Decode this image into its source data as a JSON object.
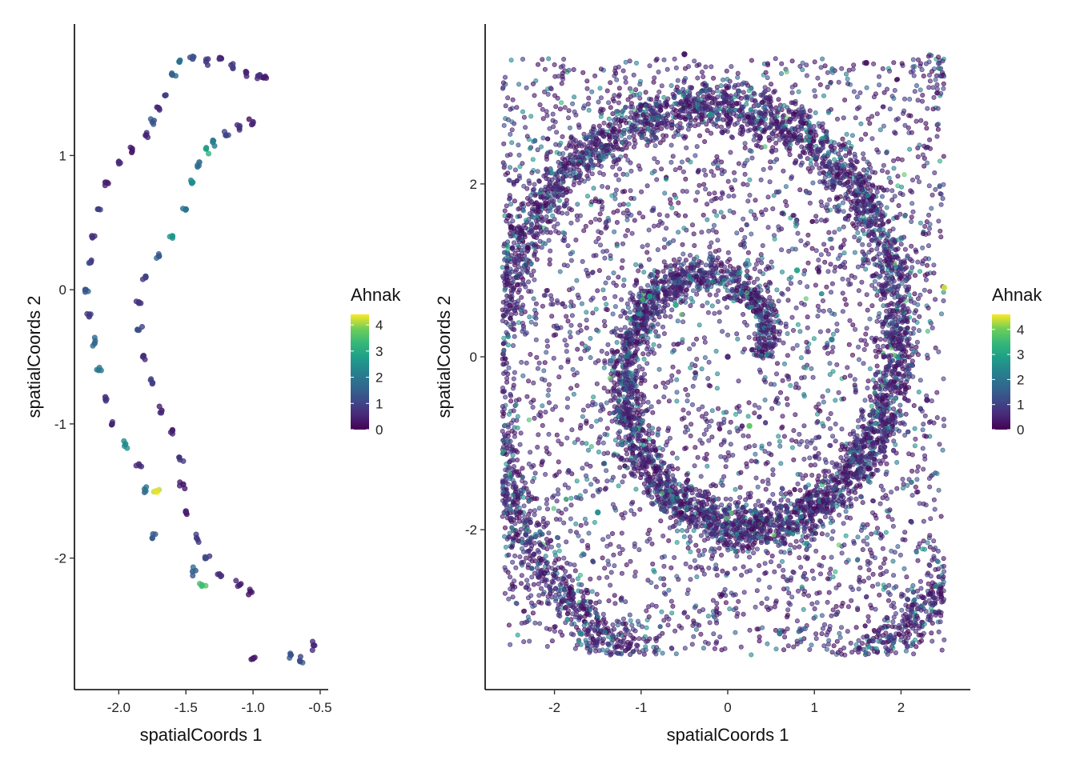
{
  "chart_data": [
    {
      "type": "scatter",
      "id": "left",
      "xlabel": "spatialCoords 1",
      "ylabel": "spatialCoords 2",
      "xlim": [
        -2.33,
        -0.44
      ],
      "ylim": [
        -2.98,
        1.98
      ],
      "xticks": [
        -2.0,
        -1.5,
        -1.0,
        -0.5
      ],
      "xtick_labels": [
        "-2.0",
        "-1.5",
        "-1.0",
        "-0.5"
      ],
      "yticks": [
        -2,
        -1,
        0,
        1
      ],
      "ytick_labels": [
        "-2",
        "-1",
        "0",
        "1"
      ],
      "color_variable": "Ahnak",
      "color_range": [
        0,
        4.4
      ],
      "colorbar_ticks": [
        0,
        1,
        2,
        3,
        4
      ],
      "colorbar_labels": [
        "0",
        "1",
        "2",
        "3",
        "4"
      ],
      "colormap": "viridis",
      "grid": false,
      "legend_position": "right",
      "shape_description": "two curved bands of cells: an outer arc from (-1.3,1.65) down through (-2.2,0) to (-1.75,-1.6), and an inner arc from (-1.0,1.25) down through (-1.85,-0.5) to (-1.0,-2.25); few isolated cells near (-0.6,-2.7)",
      "points": [
        {
          "x": -1.55,
          "y": 1.7,
          "v": 1.8
        },
        {
          "x": -1.45,
          "y": 1.72,
          "v": 1.2
        },
        {
          "x": -1.35,
          "y": 1.7,
          "v": 0.8
        },
        {
          "x": -1.25,
          "y": 1.72,
          "v": 0.6
        },
        {
          "x": -1.15,
          "y": 1.65,
          "v": 0.9
        },
        {
          "x": -1.05,
          "y": 1.62,
          "v": 0.5
        },
        {
          "x": -0.95,
          "y": 1.6,
          "v": 0.7
        },
        {
          "x": -0.92,
          "y": 1.58,
          "v": 0.4
        },
        {
          "x": -1.6,
          "y": 1.6,
          "v": 1.5
        },
        {
          "x": -1.65,
          "y": 1.45,
          "v": 1.0
        },
        {
          "x": -1.7,
          "y": 1.35,
          "v": 0.6
        },
        {
          "x": -1.75,
          "y": 1.25,
          "v": 1.3
        },
        {
          "x": -1.8,
          "y": 1.15,
          "v": 0.5
        },
        {
          "x": -1.9,
          "y": 1.05,
          "v": 0.3
        },
        {
          "x": -2.0,
          "y": 0.95,
          "v": 0.6
        },
        {
          "x": -2.1,
          "y": 0.8,
          "v": 0.4
        },
        {
          "x": -2.15,
          "y": 0.6,
          "v": 0.9
        },
        {
          "x": -2.2,
          "y": 0.4,
          "v": 0.7
        },
        {
          "x": -2.22,
          "y": 0.2,
          "v": 1.1
        },
        {
          "x": -2.25,
          "y": 0.0,
          "v": 1.3
        },
        {
          "x": -2.22,
          "y": -0.2,
          "v": 0.8
        },
        {
          "x": -2.18,
          "y": -0.4,
          "v": 1.6
        },
        {
          "x": -2.15,
          "y": -0.6,
          "v": 2.0
        },
        {
          "x": -2.1,
          "y": -0.8,
          "v": 0.7
        },
        {
          "x": -2.05,
          "y": -1.0,
          "v": 0.5
        },
        {
          "x": -1.95,
          "y": -1.15,
          "v": 2.3
        },
        {
          "x": -1.85,
          "y": -1.3,
          "v": 0.6
        },
        {
          "x": -1.8,
          "y": -1.5,
          "v": 1.9
        },
        {
          "x": -1.72,
          "y": -1.5,
          "v": 4.3
        },
        {
          "x": -1.75,
          "y": -1.85,
          "v": 1.4
        },
        {
          "x": -1.0,
          "y": 1.25,
          "v": 0.5
        },
        {
          "x": -1.1,
          "y": 1.22,
          "v": 0.7
        },
        {
          "x": -1.2,
          "y": 1.15,
          "v": 1.0
        },
        {
          "x": -1.3,
          "y": 1.1,
          "v": 2.1
        },
        {
          "x": -1.35,
          "y": 1.05,
          "v": 2.8
        },
        {
          "x": -1.4,
          "y": 0.95,
          "v": 1.7
        },
        {
          "x": -1.45,
          "y": 0.8,
          "v": 2.4
        },
        {
          "x": -1.5,
          "y": 0.6,
          "v": 1.9
        },
        {
          "x": -1.6,
          "y": 0.4,
          "v": 2.6
        },
        {
          "x": -1.7,
          "y": 0.25,
          "v": 1.4
        },
        {
          "x": -1.8,
          "y": 0.1,
          "v": 1.0
        },
        {
          "x": -1.85,
          "y": -0.1,
          "v": 0.8
        },
        {
          "x": -1.85,
          "y": -0.3,
          "v": 1.2
        },
        {
          "x": -1.82,
          "y": -0.5,
          "v": 0.6
        },
        {
          "x": -1.75,
          "y": -0.7,
          "v": 0.9
        },
        {
          "x": -1.68,
          "y": -0.9,
          "v": 0.5
        },
        {
          "x": -1.6,
          "y": -1.05,
          "v": 0.4
        },
        {
          "x": -1.55,
          "y": -1.25,
          "v": 0.7
        },
        {
          "x": -1.52,
          "y": -1.45,
          "v": 0.3
        },
        {
          "x": -1.5,
          "y": -1.65,
          "v": 0.5
        },
        {
          "x": -1.42,
          "y": -1.85,
          "v": 0.8
        },
        {
          "x": -1.35,
          "y": -2.0,
          "v": 1.1
        },
        {
          "x": -1.25,
          "y": -2.12,
          "v": 0.6
        },
        {
          "x": -1.1,
          "y": -2.2,
          "v": 0.4
        },
        {
          "x": -1.02,
          "y": -2.25,
          "v": 0.3
        },
        {
          "x": -1.38,
          "y": -2.2,
          "v": 3.4
        },
        {
          "x": -1.45,
          "y": -2.1,
          "v": 1.6
        },
        {
          "x": -1.0,
          "y": -2.75,
          "v": 0.4
        },
        {
          "x": -0.72,
          "y": -2.72,
          "v": 1.3
        },
        {
          "x": -0.65,
          "y": -2.77,
          "v": 1.1
        },
        {
          "x": -0.55,
          "y": -2.65,
          "v": 0.5
        }
      ]
    },
    {
      "type": "scatter",
      "id": "right",
      "xlabel": "spatialCoords 1",
      "ylabel": "spatialCoords 2",
      "xlim": [
        -2.8,
        2.8
      ],
      "ylim": [
        -3.85,
        3.85
      ],
      "xticks": [
        -2,
        -1,
        0,
        1,
        2
      ],
      "xtick_labels": [
        "-2",
        "-1",
        "0",
        "1",
        "2"
      ],
      "yticks": [
        -2,
        0,
        2
      ],
      "ytick_labels": [
        "-2",
        "0",
        "2"
      ],
      "color_variable": "Ahnak",
      "color_range": [
        0,
        4.6
      ],
      "colorbar_ticks": [
        0,
        1,
        2,
        3,
        4
      ],
      "colorbar_labels": [
        "0",
        "1",
        "2",
        "3",
        "4"
      ],
      "colormap": "viridis",
      "grid": false,
      "legend_position": "right",
      "shape_description": "dense spiral-shaped tissue section spanning x -2.6 to 2.5 and y -3.5 to 3.5; spiral arms of mostly low expression (0-1) with moderate (2-3) cells along inner arm edges; a few high-expression cells near (2.5,0.8) and (0.2,-0.8)",
      "points": [
        {
          "x": 2.5,
          "y": 0.8,
          "v": 4.4
        },
        {
          "x": 0.25,
          "y": -0.8,
          "v": 3.8
        },
        {
          "x": -0.6,
          "y": 0.6,
          "v": 3.2
        },
        {
          "x": -0.9,
          "y": 0.7,
          "v": 2.8
        },
        {
          "x": 0.8,
          "y": 1.0,
          "v": 3.0
        },
        {
          "x": -1.5,
          "y": -1.8,
          "v": 2.5
        },
        {
          "x": -0.2,
          "y": 2.8,
          "v": 2.6
        },
        {
          "x": 1.2,
          "y": 0.2,
          "v": 2.2
        },
        {
          "x": 0.6,
          "y": -3.2,
          "v": 2.0
        },
        {
          "x": -1.7,
          "y": -3.2,
          "v": 2.4
        },
        {
          "x": 0.0,
          "y": 0.0,
          "v": 0.5
        },
        {
          "x": -2.5,
          "y": 1.5,
          "v": 0.2
        },
        {
          "x": 2.3,
          "y": -0.5,
          "v": 0.4
        },
        {
          "x": 1.6,
          "y": 3.4,
          "v": 0.3
        },
        {
          "x": -0.5,
          "y": 3.5,
          "v": 0.2
        }
      ]
    }
  ]
}
